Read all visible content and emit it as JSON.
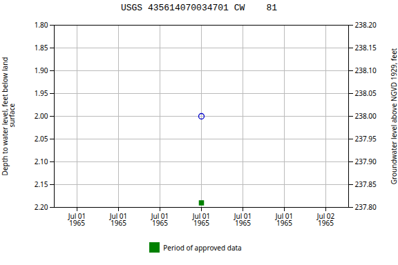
{
  "chart_data": {
    "type": "scatter",
    "title": "USGS 435614070034701 CW    81",
    "categories": [
      "Jul 01\n1965",
      "Jul 01\n1965",
      "Jul 01\n1965",
      "Jul 01\n1965",
      "Jul 01\n1965",
      "Jul 01\n1965",
      "Jul 02\n1965"
    ],
    "series": [
      {
        "color": "#0000cc",
        "marker": "open_circle",
        "values": [
          null,
          null,
          null,
          2.0,
          null,
          null,
          null
        ]
      },
      {
        "name": "Period of approved data",
        "color": "#008000",
        "marker": "square",
        "values": [
          null,
          null,
          null,
          2.19,
          null,
          null,
          null
        ]
      }
    ],
    "ylabel": "Depth to water level, feet below land\n surface",
    "y2label": "Groundwater level above NGVD 1929, feet",
    "ylim": [
      2.2,
      1.8
    ],
    "yticks": [
      {
        "value": 1.8,
        "label": "1.80"
      },
      {
        "value": 1.85,
        "label": "1.85"
      },
      {
        "value": 1.9,
        "label": "1.90"
      },
      {
        "value": 1.95,
        "label": "1.95"
      },
      {
        "value": 2.0,
        "label": "2.00"
      },
      {
        "value": 2.05,
        "label": "2.05"
      },
      {
        "value": 2.1,
        "label": "2.10"
      },
      {
        "value": 2.15,
        "label": "2.15"
      },
      {
        "value": 2.2,
        "label": "2.20"
      }
    ],
    "y2lim": [
      237.8,
      238.2
    ],
    "y2ticks": [
      {
        "value": 237.8,
        "label": "237.80"
      },
      {
        "value": 237.85,
        "label": "237.85"
      },
      {
        "value": 237.9,
        "label": "237.90"
      },
      {
        "value": 237.95,
        "label": "237.95"
      },
      {
        "value": 238.0,
        "label": "238.00"
      },
      {
        "value": 238.05,
        "label": "238.05"
      },
      {
        "value": 238.1,
        "label": "238.10"
      },
      {
        "value": 238.15,
        "label": "238.15"
      },
      {
        "value": 238.2,
        "label": "238.20"
      }
    ],
    "grid": true,
    "legend": "bottom"
  }
}
